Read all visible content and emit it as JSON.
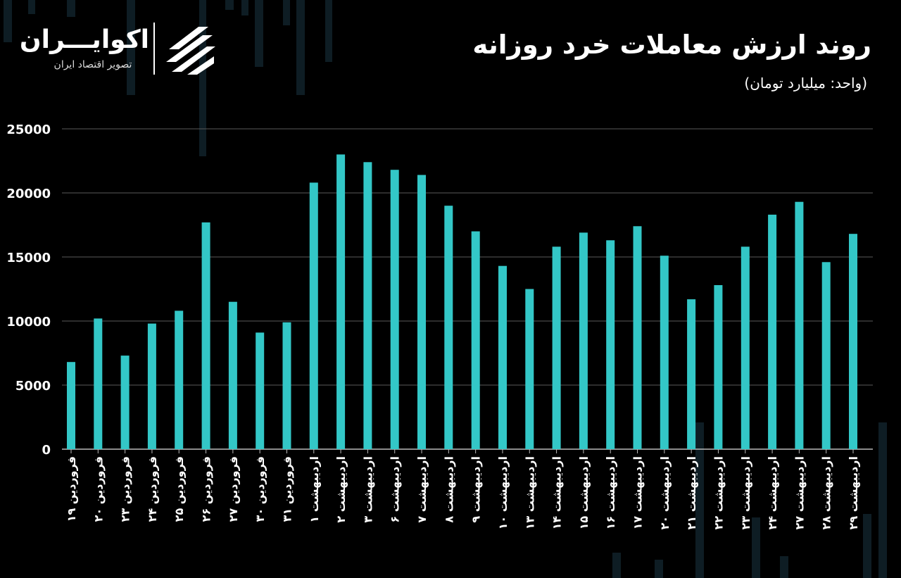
{
  "header": {
    "title": "روند ارزش معاملات خرد روزانه",
    "subtitle": "(واحد: میلیارد تومان)"
  },
  "logo": {
    "name": "اکوایـــران",
    "tagline": "تصویر اقتصاد ایران"
  },
  "colors": {
    "bar": "#33c7c7",
    "background": "#000000",
    "grid": "#5a5a5a",
    "text": "#ffffff",
    "decoration": "#10222b"
  },
  "chart_data": {
    "type": "bar",
    "title": "روند ارزش معاملات خرد روزانه",
    "ylabel": "(واحد: میلیارد تومان)",
    "ylim": [
      0,
      25000
    ],
    "yticks": [
      0,
      5000,
      10000,
      15000,
      20000,
      25000
    ],
    "ytick_labels": [
      "0",
      "5000",
      "10000",
      "15000",
      "20000",
      "25000"
    ],
    "grid": true,
    "categories": [
      "۱۹ فروردین",
      "۲۰ فروردین",
      "۲۳ فروردین",
      "۲۴ فروردین",
      "۲۵ فروردین",
      "۲۶ فروردین",
      "۲۷ فروردین",
      "۳۰ فروردین",
      "۳۱ فروردین",
      "۱ اردیبهشت",
      "۲ اردیبهشت",
      "۳ اردیبهشت",
      "۶ اردیبهشت",
      "۷ اردیبهشت",
      "۸ اردیبهشت",
      "۹ اردیبهشت",
      "۱۰ اردیبهشت",
      "۱۳ اردیبهشت",
      "۱۴ اردیبهشت",
      "۱۵ اردیبهشت",
      "۱۶ اردیبهشت",
      "۱۷ اردیبهشت",
      "۲۰ اردیبهشت",
      "۲۱ اردیبهشت",
      "۲۲ اردیبهشت",
      "۲۳ اردیبهشت",
      "۲۴ اردیبهشت",
      "۲۷ اردیبهشت",
      "۲۸ اردیبهشت",
      "۲۹ اردیبهشت"
    ],
    "values": [
      6800,
      10200,
      7300,
      9800,
      10800,
      17700,
      11500,
      9100,
      9900,
      20800,
      23000,
      22400,
      21800,
      21400,
      19000,
      17000,
      14300,
      12500,
      15800,
      16900,
      16300,
      17400,
      15100,
      11700,
      12800,
      15800,
      18300,
      19300,
      14600,
      16800
    ]
  }
}
